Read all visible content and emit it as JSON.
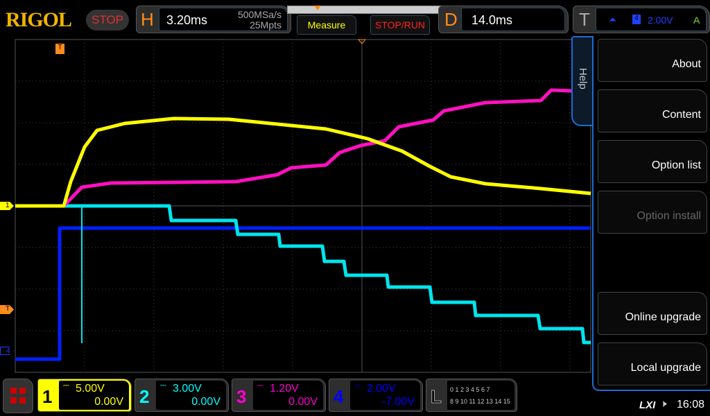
{
  "header": {
    "logo": "RIGOL",
    "run_state": "STOP",
    "h_letter": "H",
    "timebase": "3.20ms",
    "sample_rate": "500MSa/s",
    "memory_depth": "25Mpts",
    "measure_label": "Measure",
    "stoprun_label": "STOP/RUN",
    "d_letter": "D",
    "delay": "14.0ms",
    "t_letter": "T",
    "trigger_level": "2.00V",
    "trigger_mode": "A",
    "trigger_source_icon": "ch4-icon",
    "trigger_edge_icon": "rising-edge-icon"
  },
  "menu": {
    "tab": "Help",
    "items": [
      {
        "label": "About",
        "enabled": true
      },
      {
        "label": "Content",
        "enabled": true
      },
      {
        "label": "Option list",
        "enabled": true
      },
      {
        "label": "Option install",
        "enabled": false
      },
      {
        "label": "Online upgrade",
        "enabled": true
      },
      {
        "label": "Local upgrade",
        "enabled": true
      }
    ]
  },
  "channels": [
    {
      "num": "1",
      "scale": "5.00V",
      "offset": "0.00V",
      "color": "#ffff00"
    },
    {
      "num": "2",
      "scale": "3.00V",
      "offset": "0.00V",
      "color": "#00ffff"
    },
    {
      "num": "3",
      "scale": "1.20V",
      "offset": "0.00V",
      "color": "#ff00cc"
    },
    {
      "num": "4",
      "scale": "2.00V",
      "offset": "-7.00V",
      "color": "#0000ff"
    }
  ],
  "logic": {
    "letter": "L",
    "row1": "0 1 2 3  4 5 6 7",
    "row2": "8 9 10 11 12 13 14 15"
  },
  "markers": {
    "ch1": "1",
    "ch4": "4",
    "trigger": "T"
  },
  "status": {
    "lxi": "LXI",
    "time": "16:08",
    "sound_icon": "speaker-muted-icon"
  }
}
